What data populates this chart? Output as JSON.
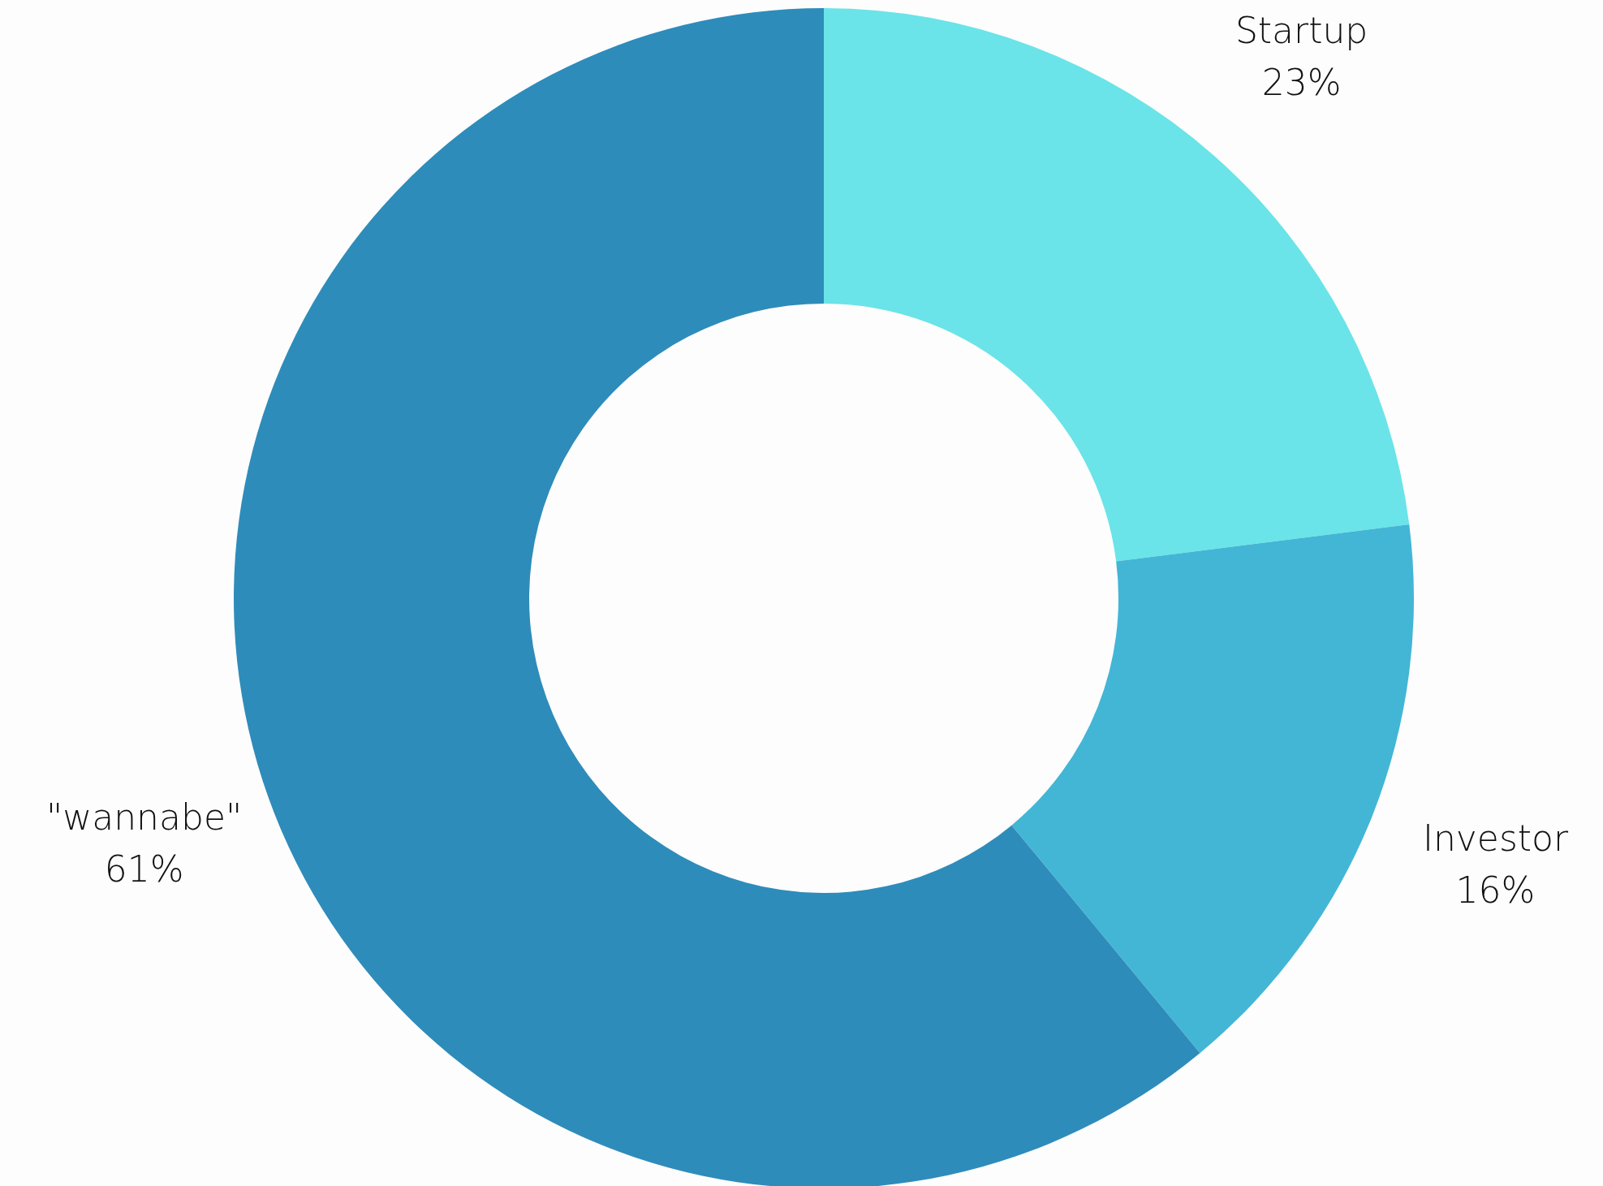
{
  "chart_data": {
    "type": "donut",
    "categories": [
      "Startup",
      "Investor",
      "\"wannabe\""
    ],
    "values": [
      23,
      16,
      61
    ],
    "colors": [
      "#6ae4e8",
      "#43b6d6",
      "#2e8cba"
    ],
    "value_labels": [
      "23%",
      "16%",
      "61%"
    ],
    "legend": false
  }
}
